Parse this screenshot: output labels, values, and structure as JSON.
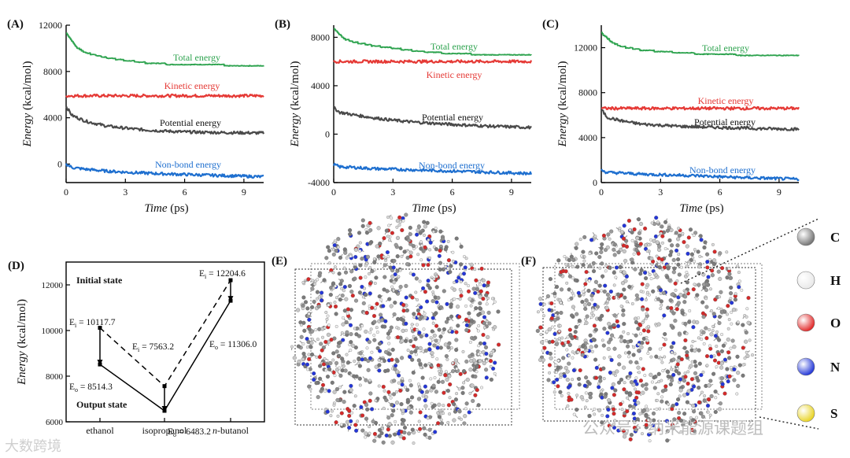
{
  "panels_top": [
    {
      "panel_label": "(A)",
      "chart_data": {
        "type": "line",
        "xlabel_italic": "Time",
        "xlabel_unit": " (ps)",
        "ylabel_italic": "Energy",
        "ylabel_unit": " (kcal/mol)",
        "xlim": [
          0,
          10
        ],
        "ylim": [
          -1600,
          12000
        ],
        "xticks": [
          0,
          3,
          6,
          9
        ],
        "yticks": [
          0,
          4000,
          8000,
          12000
        ],
        "yticklabels": [
          "0",
          "4000",
          "8000",
          "12000"
        ],
        "series": [
          {
            "name": "Total energy",
            "color": "#2ea34f",
            "x": [
              0,
              0.5,
              1,
              2,
              3,
              4,
              5,
              6,
              7,
              8,
              9,
              10
            ],
            "y": [
              11300,
              10100,
              9600,
              9200,
              8950,
              8750,
              8650,
              8600,
              8560,
              8540,
              8520,
              8514
            ]
          },
          {
            "name": "Kinetic energy",
            "color": "#e53935",
            "x": [
              0,
              10
            ],
            "y": [
              5900,
              5900
            ]
          },
          {
            "name": "Potential energy",
            "color": "#4a4a4a",
            "x": [
              0,
              0.3,
              1,
              2,
              3,
              4,
              5,
              6,
              7,
              8,
              9,
              10
            ],
            "y": [
              5000,
              4200,
              3700,
              3300,
              3100,
              2950,
              2850,
              2780,
              2740,
              2720,
              2700,
              2680
            ]
          },
          {
            "name": "Non-bond energy",
            "color": "#1e6fcf",
            "x": [
              0,
              0.3,
              1,
              2,
              3,
              4,
              5,
              6,
              7,
              8,
              9,
              10
            ],
            "y": [
              0,
              -300,
              -450,
              -600,
              -700,
              -780,
              -850,
              -900,
              -950,
              -1000,
              -1050,
              -1100
            ]
          }
        ]
      }
    },
    {
      "panel_label": "(B)",
      "chart_data": {
        "type": "line",
        "xlabel_italic": "Time",
        "xlabel_unit": " (ps)",
        "ylabel_italic": "Energy",
        "ylabel_unit": " (kcal/mol)",
        "xlim": [
          0,
          10
        ],
        "ylim": [
          -4000,
          9000
        ],
        "xticks": [
          0,
          3,
          6,
          9
        ],
        "yticks": [
          -4000,
          0,
          4000,
          8000
        ],
        "yticklabels": [
          "-4000",
          "0",
          "4000",
          "8000"
        ],
        "series": [
          {
            "name": "Total energy",
            "color": "#2ea34f",
            "x": [
              0,
              0.5,
              1,
              2,
              3,
              4,
              5,
              6,
              7,
              8,
              9,
              10
            ],
            "y": [
              8700,
              7900,
              7600,
              7300,
              7100,
              6900,
              6750,
              6650,
              6600,
              6560,
              6530,
              6500
            ]
          },
          {
            "name": "Kinetic energy",
            "color": "#e53935",
            "x": [
              0,
              10
            ],
            "y": [
              6000,
              6000
            ]
          },
          {
            "name": "Potential energy",
            "color": "#4a4a4a",
            "x": [
              0,
              0.3,
              1,
              2,
              3,
              4,
              5,
              6,
              7,
              8,
              9,
              10
            ],
            "y": [
              2200,
              1800,
              1600,
              1350,
              1150,
              1000,
              900,
              800,
              720,
              650,
              600,
              550
            ]
          },
          {
            "name": "Non-bond energy",
            "color": "#1e6fcf",
            "x": [
              0,
              0.3,
              1,
              2,
              3,
              4,
              5,
              6,
              7,
              8,
              9,
              10
            ],
            "y": [
              -2500,
              -2700,
              -2750,
              -2850,
              -2900,
              -2950,
              -3000,
              -3050,
              -3100,
              -3150,
              -3200,
              -3250
            ]
          }
        ]
      }
    },
    {
      "panel_label": "(C)",
      "chart_data": {
        "type": "line",
        "xlabel_italic": "Time",
        "xlabel_unit": " (ps)",
        "ylabel_italic": "Energy",
        "ylabel_unit": " (kcal/mol)",
        "xlim": [
          0,
          10
        ],
        "ylim": [
          0,
          14000
        ],
        "xticks": [
          0,
          3,
          6,
          9
        ],
        "yticks": [
          0,
          4000,
          8000,
          12000
        ],
        "yticklabels": [
          "0",
          "4000",
          "8000",
          "12000"
        ],
        "series": [
          {
            "name": "Total energy",
            "color": "#2ea34f",
            "x": [
              0,
              0.5,
              1,
              2,
              3,
              4,
              5,
              6,
              7,
              8,
              9,
              10
            ],
            "y": [
              13300,
              12500,
              12100,
              11800,
              11650,
              11550,
              11450,
              11400,
              11360,
              11340,
              11320,
              11306
            ]
          },
          {
            "name": "Kinetic energy",
            "color": "#e53935",
            "x": [
              0,
              10
            ],
            "y": [
              6600,
              6600
            ]
          },
          {
            "name": "Potential energy",
            "color": "#4a4a4a",
            "x": [
              0,
              0.3,
              1,
              2,
              3,
              4,
              5,
              6,
              7,
              8,
              9,
              10
            ],
            "y": [
              6500,
              5800,
              5500,
              5200,
              5100,
              5000,
              4950,
              4900,
              4850,
              4800,
              4780,
              4750
            ]
          },
          {
            "name": "Non-bond energy",
            "color": "#1e6fcf",
            "x": [
              0,
              0.3,
              1,
              2,
              3,
              4,
              5,
              6,
              7,
              8,
              9,
              10
            ],
            "y": [
              1100,
              900,
              850,
              750,
              700,
              650,
              600,
              520,
              450,
              400,
              350,
              300
            ]
          }
        ]
      }
    }
  ],
  "panel_d": {
    "panel_label": "(D)",
    "chart_data": {
      "type": "line",
      "ylabel_italic": "Energy",
      "ylabel_unit": " (kcal/mol)",
      "categories": [
        "ethanol",
        "isopropanol",
        "butanol"
      ],
      "category_prefix_italic": [
        "",
        "",
        "n-"
      ],
      "ylim": [
        6000,
        13000
      ],
      "yticks": [
        6000,
        8000,
        10000,
        12000
      ],
      "yticklabels": [
        "6000",
        "8000",
        "10000",
        "12000"
      ],
      "series": [
        {
          "name": "Initial state",
          "style": "dashed",
          "values": [
            10117.7,
            7563.2,
            12204.6
          ]
        },
        {
          "name": "Output state",
          "style": "solid",
          "values": [
            8514.3,
            6483.2,
            11306.0
          ]
        }
      ],
      "state_labels": [
        "Initial state",
        "Output state"
      ],
      "point_labels": [
        {
          "sym": "E",
          "sub": "i",
          "text": "= 10117.7"
        },
        {
          "sym": "E",
          "sub": "o",
          "text": "= 8514.3"
        },
        {
          "sym": "E",
          "sub": "i",
          "text": "= 7563.2"
        },
        {
          "sym": "E",
          "sub": "o",
          "text": "= 6483.2"
        },
        {
          "sym": "E",
          "sub": "i",
          "text": "= 12204.6"
        },
        {
          "sym": "E",
          "sub": "o",
          "text": "= 11306.0"
        }
      ]
    }
  },
  "panel_e": {
    "panel_label": "(E)"
  },
  "panel_f": {
    "panel_label": "(F)"
  },
  "legend_atoms": [
    {
      "symbol": "C",
      "color": "#6e6e6e"
    },
    {
      "symbol": "H",
      "color": "#e8e8e8"
    },
    {
      "symbol": "O",
      "color": "#e02020"
    },
    {
      "symbol": "N",
      "color": "#1a2fd6"
    },
    {
      "symbol": "S",
      "color": "#e8d21c"
    }
  ],
  "watermarks": {
    "left": "大数跨境",
    "right": "公众号 · 纳米能源课题组"
  }
}
